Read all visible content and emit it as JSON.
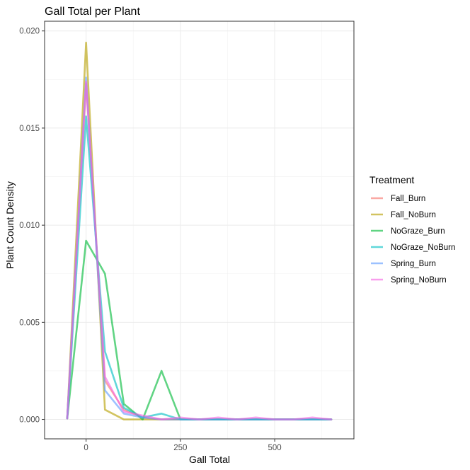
{
  "chart_data": {
    "type": "line",
    "title": "Gall Total per Plant",
    "xlabel": "Gall Total",
    "ylabel": "Plant Count Density",
    "xlim": [
      -110,
      710
    ],
    "ylim": [
      -0.001,
      0.0205
    ],
    "x_ticks": [
      0,
      250,
      500
    ],
    "y_ticks": [
      0.0,
      0.005,
      0.01,
      0.015,
      0.02
    ],
    "y_tick_labels": [
      "0.000",
      "0.005",
      "0.010",
      "0.015",
      "0.020"
    ],
    "x_tick_labels": [
      "0",
      "250",
      "500"
    ],
    "grid": true,
    "legend": {
      "title": "Treatment",
      "position": "right"
    },
    "series": [
      {
        "name": "Fall_Burn",
        "color": "#F8766D",
        "x": [
          -50,
          0,
          50,
          100,
          150,
          200,
          250,
          300,
          350,
          400,
          450,
          500,
          550,
          600,
          650
        ],
        "y": [
          5e-05,
          0.0173,
          0.002,
          0.0005,
          0.0001,
          0.0,
          0.0,
          0.0,
          0.0,
          0.0,
          0.0,
          0.0,
          0.0,
          0.0,
          0.0
        ]
      },
      {
        "name": "Fall_NoBurn",
        "color": "#B79F00",
        "x": [
          -50,
          0,
          50,
          100,
          150,
          200,
          250,
          300,
          350,
          400,
          450,
          500,
          550,
          600,
          650
        ],
        "y": [
          5e-05,
          0.0194,
          0.0005,
          0.0,
          0.0,
          0.0,
          0.0,
          0.0,
          0.0,
          0.0,
          0.0,
          0.0,
          0.0,
          0.0,
          0.0
        ]
      },
      {
        "name": "NoGraze_Burn",
        "color": "#00BA38",
        "x": [
          -50,
          0,
          50,
          100,
          150,
          200,
          250,
          300,
          350,
          400,
          450,
          500,
          550,
          600,
          650
        ],
        "y": [
          5e-05,
          0.0092,
          0.0075,
          0.0008,
          0.0,
          0.0025,
          0.0,
          0.0,
          0.0,
          0.0,
          0.0,
          0.0,
          0.0,
          0.0,
          0.0
        ]
      },
      {
        "name": "NoGraze_NoBurn",
        "color": "#00BFC4",
        "x": [
          -50,
          0,
          50,
          100,
          150,
          200,
          250,
          300,
          350,
          400,
          450,
          500,
          550,
          600,
          650
        ],
        "y": [
          5e-05,
          0.0156,
          0.0035,
          0.0006,
          0.0001,
          0.0003,
          0.0,
          0.0,
          0.0,
          0.0,
          0.0,
          0.0,
          0.0,
          0.0,
          0.0
        ]
      },
      {
        "name": "Spring_Burn",
        "color": "#619CFF",
        "x": [
          -50,
          0,
          50,
          100,
          150,
          200,
          250,
          300,
          350,
          400,
          450,
          500,
          550,
          600,
          650
        ],
        "y": [
          5e-05,
          0.0176,
          0.0015,
          0.0003,
          0.0001,
          0.0,
          0.0,
          0.0,
          0.0,
          0.0,
          0.0,
          0.0,
          0.0,
          0.0,
          0.0
        ]
      },
      {
        "name": "Spring_NoBurn",
        "color": "#F564E3",
        "x": [
          -50,
          0,
          50,
          100,
          150,
          200,
          250,
          300,
          350,
          400,
          450,
          500,
          550,
          600,
          650
        ],
        "y": [
          5e-05,
          0.0174,
          0.0022,
          0.0004,
          0.0002,
          0.0,
          0.0001,
          0.0,
          0.0001,
          0.0,
          0.0001,
          0.0,
          0.0,
          0.0001,
          0.0
        ]
      }
    ]
  }
}
